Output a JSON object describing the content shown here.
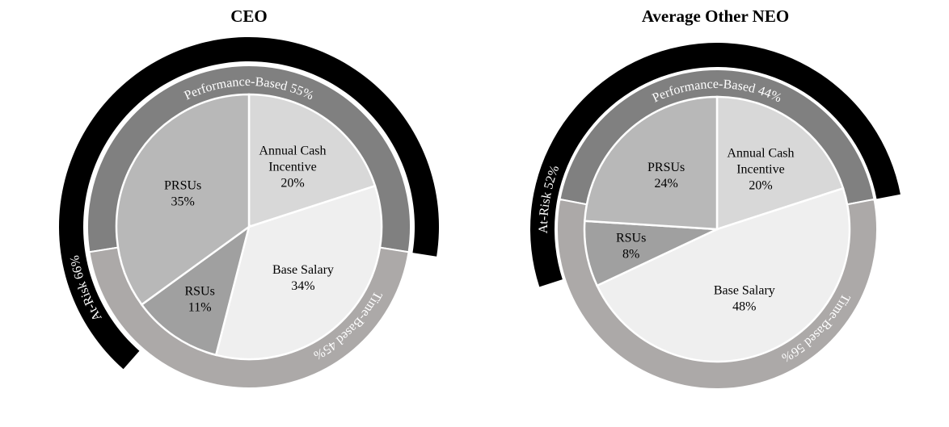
{
  "chart_data": [
    {
      "type": "pie",
      "title": "CEO",
      "slices": [
        {
          "label": "Annual Cash Incentive",
          "label_lines": [
            "Annual Cash",
            "Incentive"
          ],
          "value": 20,
          "display": "20%",
          "color": "#d8d8d8"
        },
        {
          "label": "Base Salary",
          "label_lines": [
            "Base Salary"
          ],
          "value": 34,
          "display": "34%",
          "color": "#efefef"
        },
        {
          "label": "RSUs",
          "label_lines": [
            "RSUs"
          ],
          "value": 11,
          "display": "11%",
          "color": "#a0a0a0"
        },
        {
          "label": "PRSUs",
          "label_lines": [
            "PRSUs"
          ],
          "value": 35,
          "display": "35%",
          "color": "#b8b8b8"
        }
      ],
      "rings": [
        {
          "label": "Performance-Based 55%",
          "value": 55,
          "color": "#808080"
        },
        {
          "label": "Time-Based 45%",
          "value": 45,
          "color": "#aca9a8"
        }
      ],
      "outer_band": {
        "label": "At-Risk 66%",
        "value": 66,
        "color": "#000000"
      }
    },
    {
      "type": "pie",
      "title": "Average Other NEO",
      "slices": [
        {
          "label": "Annual Cash Incentive",
          "label_lines": [
            "Annual Cash",
            "Incentive"
          ],
          "value": 20,
          "display": "20%",
          "color": "#d8d8d8"
        },
        {
          "label": "Base Salary",
          "label_lines": [
            "Base Salary"
          ],
          "value": 48,
          "display": "48%",
          "color": "#efefef"
        },
        {
          "label": "RSUs",
          "label_lines": [
            "RSUs"
          ],
          "value": 8,
          "display": "8%",
          "color": "#a0a0a0"
        },
        {
          "label": "PRSUs",
          "label_lines": [
            "PRSUs"
          ],
          "value": 24,
          "display": "24%",
          "color": "#b8b8b8"
        }
      ],
      "rings": [
        {
          "label": "Performance-Based 44%",
          "value": 44,
          "color": "#808080"
        },
        {
          "label": "Time-Based 56%",
          "value": 56,
          "color": "#aca9a8"
        }
      ],
      "outer_band": {
        "label": "At-Risk 52%",
        "value": 52,
        "color": "#000000"
      }
    }
  ]
}
